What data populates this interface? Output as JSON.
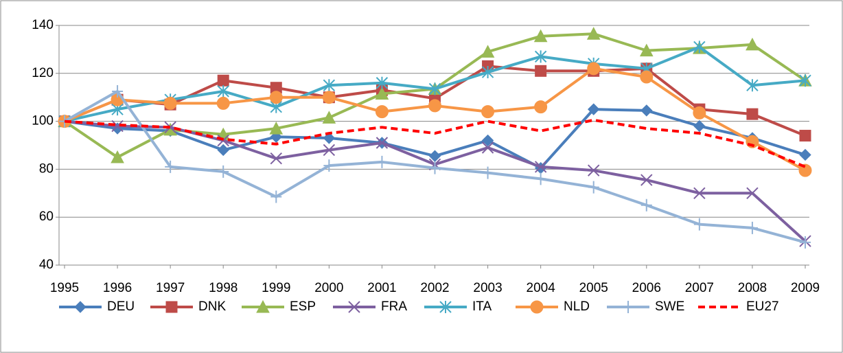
{
  "chart_data": {
    "type": "line",
    "categories": [
      "1995",
      "1996",
      "1997",
      "1998",
      "1999",
      "2000",
      "2001",
      "2002",
      "2003",
      "2004",
      "2005",
      "2006",
      "2007",
      "2008",
      "2009"
    ],
    "ylim": [
      40,
      140
    ],
    "yticks": [
      40,
      60,
      80,
      100,
      120,
      140
    ],
    "grid": true,
    "legend": "bottom",
    "series": [
      {
        "name": "DEU",
        "color": "#4a7ebb",
        "marker": "diamond",
        "values": [
          100,
          97,
          96,
          88,
          93.5,
          93,
          91,
          85.5,
          92,
          80.5,
          105,
          104.5,
          98,
          93,
          86
        ]
      },
      {
        "name": "DNK",
        "color": "#be4b48",
        "marker": "square",
        "values": [
          100,
          109,
          107,
          117,
          114,
          110,
          113,
          109.5,
          123,
          121,
          121,
          122,
          105,
          103,
          94
        ]
      },
      {
        "name": "ESP",
        "color": "#98b954",
        "marker": "triangle",
        "values": [
          100,
          85,
          96.5,
          94.5,
          97,
          101.5,
          111.5,
          113.5,
          129,
          135.5,
          136.5,
          129.5,
          130.5,
          132,
          117
        ]
      },
      {
        "name": "FRA",
        "color": "#7d60a0",
        "marker": "x",
        "values": [
          100,
          98,
          97.5,
          92,
          84.5,
          88,
          91,
          82,
          89,
          81,
          79.5,
          75.5,
          70,
          70,
          50
        ]
      },
      {
        "name": "ITA",
        "color": "#46aac5",
        "marker": "star",
        "values": [
          100,
          105,
          109,
          112.5,
          106,
          115,
          116,
          113.5,
          120.5,
          127,
          124,
          122,
          131,
          115,
          117
        ]
      },
      {
        "name": "NLD",
        "color": "#f79646",
        "marker": "circle",
        "values": [
          100,
          109,
          107.5,
          107.5,
          110,
          110,
          104,
          106.5,
          104,
          106,
          122,
          118.5,
          103.5,
          91.5,
          79.5
        ]
      },
      {
        "name": "SWE",
        "color": "#94b3d6",
        "marker": "plus",
        "values": [
          100,
          112.5,
          81,
          79,
          68.5,
          81.5,
          83,
          80.5,
          78.5,
          76,
          72.5,
          65,
          57,
          55.5,
          49.5
        ]
      },
      {
        "name": "EU27",
        "color": "#ff0000",
        "marker": "none",
        "dashed": true,
        "values": [
          100,
          98.5,
          97.5,
          92.5,
          90.5,
          95,
          97.5,
          95,
          100,
          96,
          100.5,
          97,
          95,
          90,
          81
        ]
      }
    ]
  }
}
